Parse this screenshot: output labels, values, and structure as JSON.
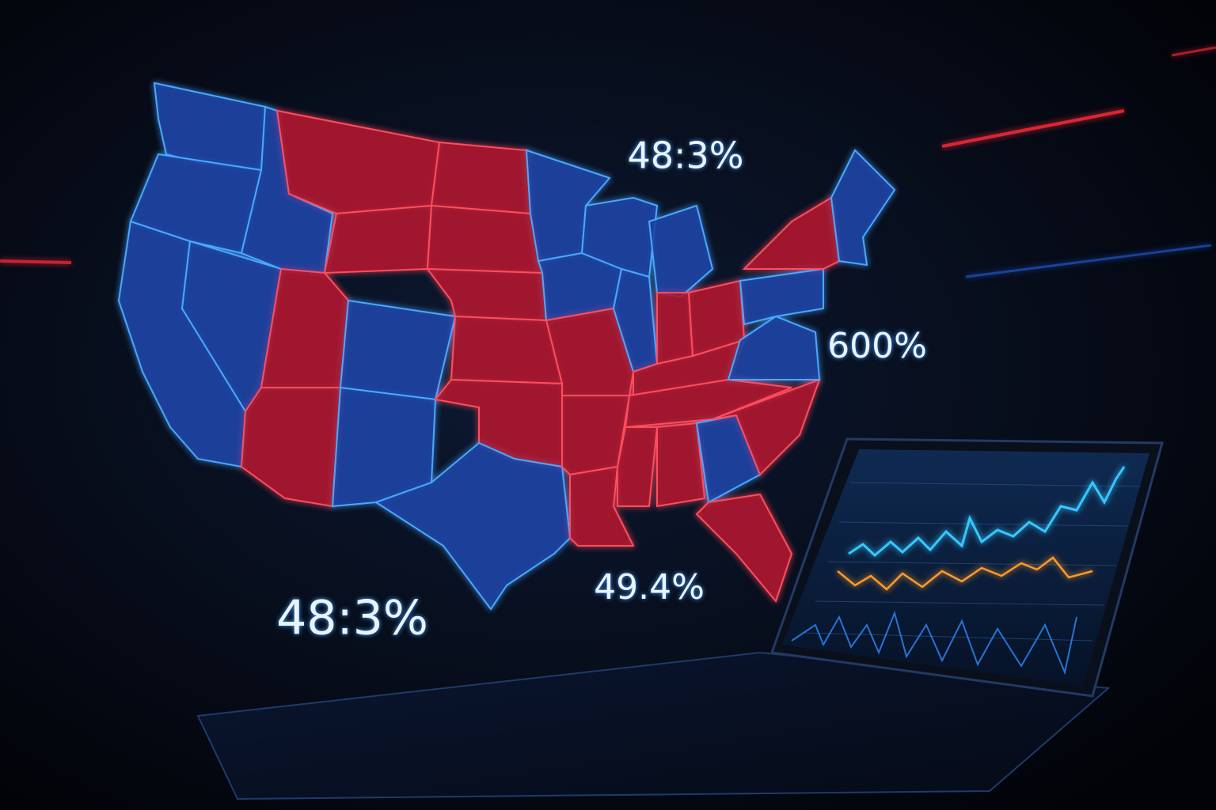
{
  "map": {
    "labels": [
      "48:3%",
      "600%",
      "49.4%",
      "48:3%"
    ]
  }
}
